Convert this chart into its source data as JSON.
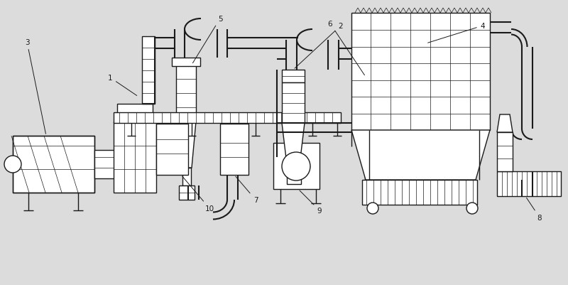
{
  "bg_color": "#dcdcdc",
  "line_color": "#1a1a1a",
  "lw": 1.0,
  "tlw": 0.5,
  "plw": 1.5
}
